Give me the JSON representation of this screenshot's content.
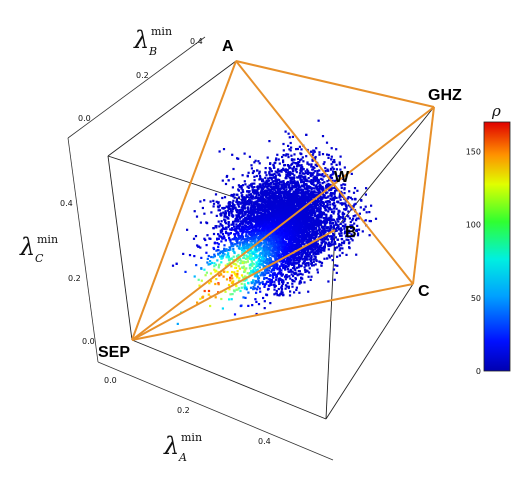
{
  "chart_data": {
    "type": "scatter",
    "subtype": "3d-density-scatter",
    "axes": {
      "x": {
        "symbol": "λ",
        "subscript": "A",
        "superscript": "min",
        "ticks": [
          "0.0",
          "0.2",
          "0.4"
        ]
      },
      "y": {
        "symbol": "λ",
        "subscript": "B",
        "superscript": "min",
        "ticks": [
          "0.0",
          "0.2",
          "0.4"
        ]
      },
      "z": {
        "symbol": "λ",
        "subscript": "C",
        "superscript": "min",
        "ticks": [
          "0.0",
          "0.2",
          "0.4"
        ]
      }
    },
    "vertices": [
      {
        "label": "SEP",
        "x": 0.0,
        "y": 0.0,
        "z": 0.0
      },
      {
        "label": "A",
        "x": 0.0,
        "y": 0.5,
        "z": 0.5
      },
      {
        "label": "B",
        "x": 0.5,
        "y": 0.0,
        "z": 0.5
      },
      {
        "label": "C",
        "x": 0.5,
        "y": 0.5,
        "z": 0.0
      },
      {
        "label": "W",
        "x": 0.33,
        "y": 0.33,
        "z": 0.33
      },
      {
        "label": "GHZ",
        "x": 0.5,
        "y": 0.5,
        "z": 0.5
      }
    ],
    "colorbar": {
      "label": "ρ",
      "range": [
        0,
        170
      ],
      "ticks": [
        "0",
        "50",
        "100",
        "150"
      ],
      "tick_values": [
        0,
        50,
        100,
        150
      ],
      "colormap": "jet"
    },
    "density_peak_near": "SEP-GHZ edge, close to SEP",
    "colors": {
      "edges": "#e8902a",
      "labels": "#ee1111",
      "box": "#222222"
    }
  }
}
